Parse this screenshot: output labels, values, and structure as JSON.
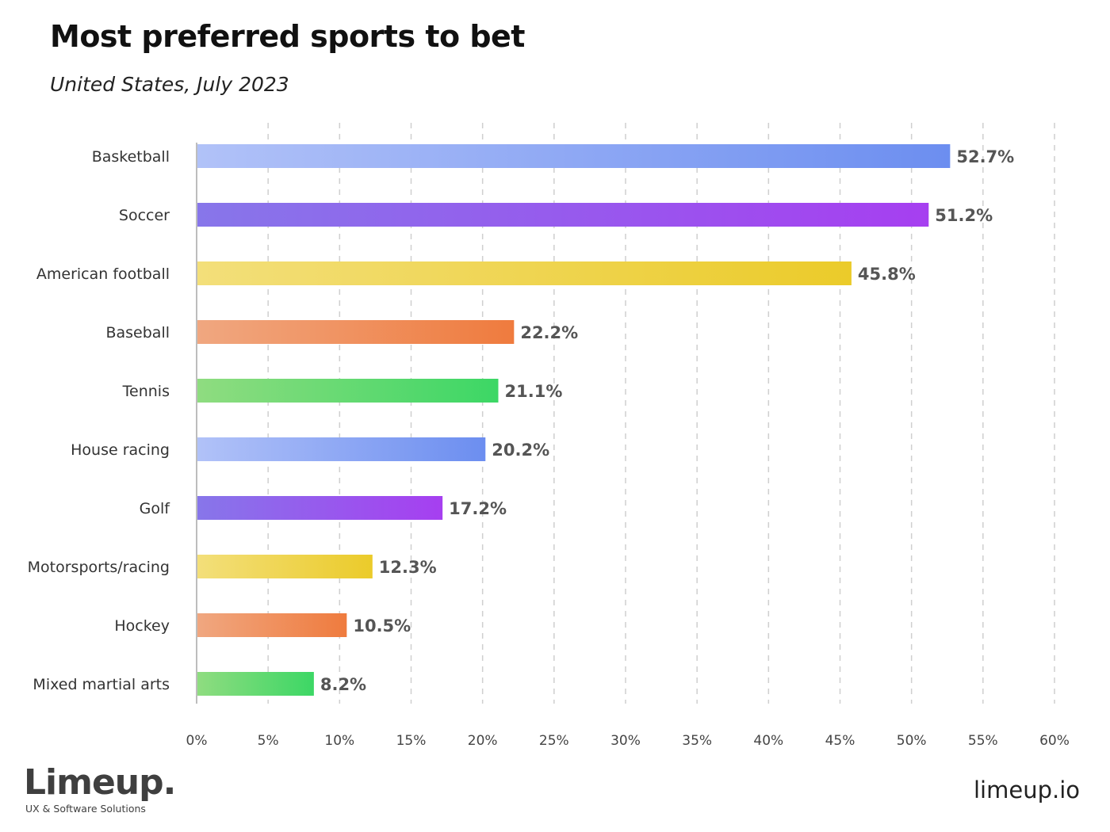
{
  "chart_data": {
    "type": "bar",
    "orientation": "horizontal",
    "title": "Most preferred sports to bet",
    "subtitle": "United States, July 2023",
    "categories": [
      "Basketball",
      "Soccer",
      "American football",
      "Baseball",
      "Tennis",
      "House racing",
      "Golf",
      "Motorsports/racing",
      "Hockey",
      "Mixed martial arts"
    ],
    "values": [
      52.7,
      51.2,
      45.8,
      22.2,
      21.1,
      20.2,
      17.2,
      12.3,
      10.5,
      8.2
    ],
    "data_labels": [
      "52.7%",
      "51.2%",
      "45.8%",
      "22.2%",
      "21.1%",
      "20.2%",
      "17.2%",
      "12.3%",
      "10.5%",
      "8.2%"
    ],
    "xlim": [
      0,
      60
    ],
    "xticks": [
      0,
      5,
      10,
      15,
      20,
      25,
      30,
      35,
      40,
      45,
      50,
      55,
      60
    ],
    "xtick_labels": [
      "0%",
      "5%",
      "10%",
      "15%",
      "20%",
      "25%",
      "30%",
      "35%",
      "40%",
      "45%",
      "50%",
      "55%",
      "60%"
    ],
    "grid": "vertical dashed",
    "bar_colors": [
      [
        "#b1c2f8",
        "#6c8ef0"
      ],
      [
        "#8776ea",
        "#a63ff0"
      ],
      [
        "#f3df7a",
        "#ebcb2a"
      ],
      [
        "#f0a780",
        "#ef7b3e"
      ],
      [
        "#8fdc80",
        "#3cd765"
      ],
      [
        "#b1c2f8",
        "#6c8ef0"
      ],
      [
        "#8776ea",
        "#a63ff0"
      ],
      [
        "#f3df7a",
        "#ebcb2a"
      ],
      [
        "#f0a780",
        "#ef7b3e"
      ],
      [
        "#8fdc80",
        "#3cd765"
      ]
    ]
  },
  "footer": {
    "logo": "Limeup.",
    "tagline": "UX & Software Solutions",
    "site": "limeup.io"
  }
}
